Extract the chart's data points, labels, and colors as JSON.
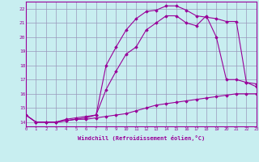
{
  "bg_color": "#c8eef0",
  "line_color": "#990099",
  "grid_color": "#9999bb",
  "xlabel": "Windchill (Refroidissement éolien,°C)",
  "xlim": [
    0,
    23
  ],
  "ylim": [
    13.7,
    22.5
  ],
  "yticks": [
    14,
    15,
    16,
    17,
    18,
    19,
    20,
    21,
    22
  ],
  "xticks": [
    0,
    1,
    2,
    3,
    4,
    5,
    6,
    7,
    8,
    9,
    10,
    11,
    12,
    13,
    14,
    15,
    16,
    17,
    18,
    19,
    20,
    21,
    22,
    23
  ],
  "series": [
    {
      "x": [
        0,
        1,
        2,
        3,
        4,
        5,
        6,
        7,
        8,
        9,
        10,
        11,
        12,
        13,
        14,
        15,
        16,
        17,
        18,
        19,
        20,
        21,
        22,
        23
      ],
      "y": [
        14.5,
        14.0,
        14.0,
        14.0,
        14.1,
        14.2,
        14.2,
        14.3,
        14.4,
        14.5,
        14.6,
        14.8,
        15.0,
        15.2,
        15.3,
        15.4,
        15.5,
        15.6,
        15.7,
        15.8,
        15.9,
        16.0,
        16.0,
        16.0
      ]
    },
    {
      "x": [
        0,
        1,
        2,
        3,
        4,
        5,
        6,
        7,
        8,
        9,
        10,
        11,
        12,
        13,
        14,
        15,
        16,
        17,
        18,
        19,
        20,
        21,
        22,
        23
      ],
      "y": [
        14.5,
        14.0,
        14.0,
        14.0,
        14.1,
        14.2,
        14.3,
        14.5,
        16.3,
        17.6,
        18.8,
        19.3,
        20.5,
        21.0,
        21.5,
        21.5,
        21.0,
        20.8,
        21.5,
        20.0,
        17.0,
        17.0,
        16.8,
        16.5
      ]
    },
    {
      "x": [
        0,
        1,
        2,
        3,
        4,
        5,
        6,
        7,
        8,
        9,
        10,
        11,
        12,
        13,
        14,
        15,
        16,
        17,
        18,
        19,
        20,
        21,
        22,
        23
      ],
      "y": [
        14.5,
        14.0,
        14.0,
        14.0,
        14.2,
        14.3,
        14.4,
        14.5,
        18.0,
        19.3,
        20.5,
        21.3,
        21.8,
        21.9,
        22.2,
        22.2,
        21.9,
        21.5,
        21.4,
        21.3,
        21.1,
        21.1,
        16.8,
        16.7
      ]
    }
  ]
}
